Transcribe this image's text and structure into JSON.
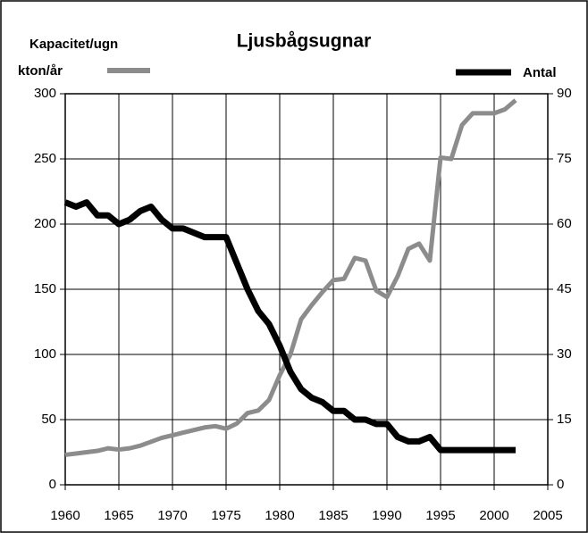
{
  "chart_data": {
    "type": "line",
    "title": "Ljusbågsugnar",
    "ylabel": "Kapacitet/ugn",
    "x": [
      1960,
      1961,
      1962,
      1963,
      1964,
      1965,
      1966,
      1967,
      1968,
      1969,
      1970,
      1971,
      1972,
      1973,
      1974,
      1975,
      1976,
      1977,
      1978,
      1979,
      1980,
      1981,
      1982,
      1983,
      1984,
      1985,
      1986,
      1987,
      1988,
      1989,
      1990,
      1991,
      1992,
      1993,
      1994,
      1995,
      1996,
      1997,
      1998,
      1999,
      2000,
      2001,
      2002
    ],
    "series": [
      {
        "name": "kton/år",
        "color": "#8c8c8c",
        "values": [
          23,
          24,
          25,
          26,
          28,
          27,
          28,
          30,
          33,
          36,
          38,
          40,
          42,
          44,
          45,
          43,
          47,
          55,
          57,
          65,
          84,
          100,
          127,
          138,
          148,
          157,
          158,
          174,
          172,
          149,
          144,
          160,
          181,
          185,
          172,
          251,
          250,
          276,
          285,
          285,
          285,
          288,
          295
        ]
      },
      {
        "name": "Antal",
        "color": "#000000",
        "axis": "y2",
        "values": [
          65,
          64,
          65,
          62,
          62,
          60,
          61,
          63,
          64,
          61,
          59,
          59,
          58,
          57,
          57,
          57,
          51,
          45,
          40,
          37,
          32,
          26,
          22,
          20,
          19,
          17,
          17,
          15,
          15,
          14,
          14,
          11,
          10,
          10,
          11,
          8,
          8,
          8,
          8,
          8,
          8,
          8,
          8
        ]
      }
    ],
    "xlim": [
      1960,
      2005
    ],
    "xticks": [
      1960,
      1965,
      1970,
      1975,
      1980,
      1985,
      1990,
      1995,
      2000,
      2005
    ],
    "ylim": [
      0,
      300
    ],
    "yticks": [
      0,
      50,
      100,
      150,
      200,
      250,
      300
    ],
    "y2lim": [
      0,
      90
    ],
    "y2ticks": [
      0,
      15,
      30,
      45,
      60,
      75,
      90
    ],
    "grid": true
  }
}
